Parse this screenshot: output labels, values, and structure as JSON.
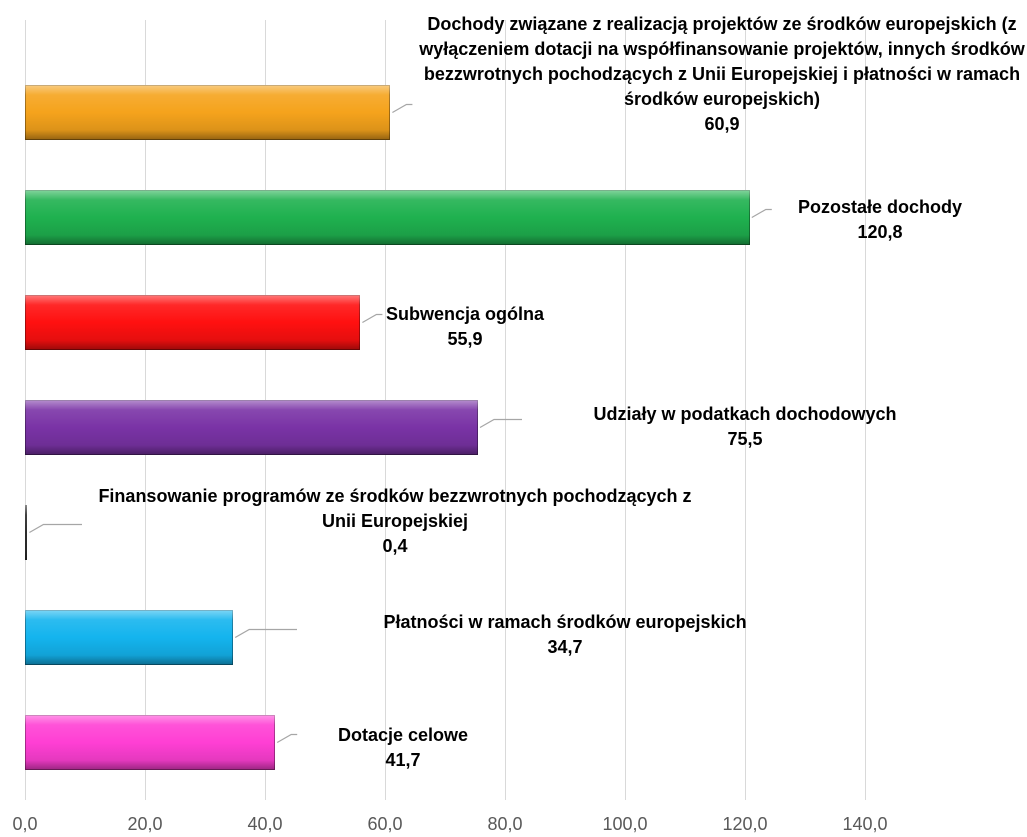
{
  "chart_data": {
    "type": "bar",
    "orientation": "horizontal",
    "categories": [
      "Dochody związane z realizacją projektów ze środków europejskich (z wyłączeniem dotacji na współfinansowanie projektów, innych środków bezzwrotnych pochodzących z Unii Europejskiej i płatności w ramach środków europejskich)",
      "Pozostałe dochody",
      "Subwencja ogólna",
      "Udziały w podatkach dochodowych",
      "Finansowanie programów ze środków bezzwrotnych pochodzących z Unii Europejskiej",
      "Płatności w ramach środków europejskich",
      "Dotacje celowe"
    ],
    "values": [
      60.9,
      120.8,
      55.9,
      75.5,
      0.4,
      34.7,
      41.7
    ],
    "value_labels": [
      "60,9",
      "120,8",
      "55,9",
      "75,5",
      "0,4",
      "34,7",
      "41,7"
    ],
    "colors": [
      "#f5a31c",
      "#1fb14f",
      "#ff1010",
      "#7a33a6",
      "#444444",
      "#14b4ee",
      "#ff3fd4"
    ],
    "xlim": [
      0,
      140
    ],
    "xticks": [
      {
        "value": 0,
        "label": "0,0"
      },
      {
        "value": 20,
        "label": "20,0"
      },
      {
        "value": 40,
        "label": "40,0"
      },
      {
        "value": 60,
        "label": "60,0"
      },
      {
        "value": 80,
        "label": "80,0"
      },
      {
        "value": 100,
        "label": "100,0"
      },
      {
        "value": 120,
        "label": "120,0"
      },
      {
        "value": 140,
        "label": "140,0"
      }
    ],
    "grid": true
  }
}
